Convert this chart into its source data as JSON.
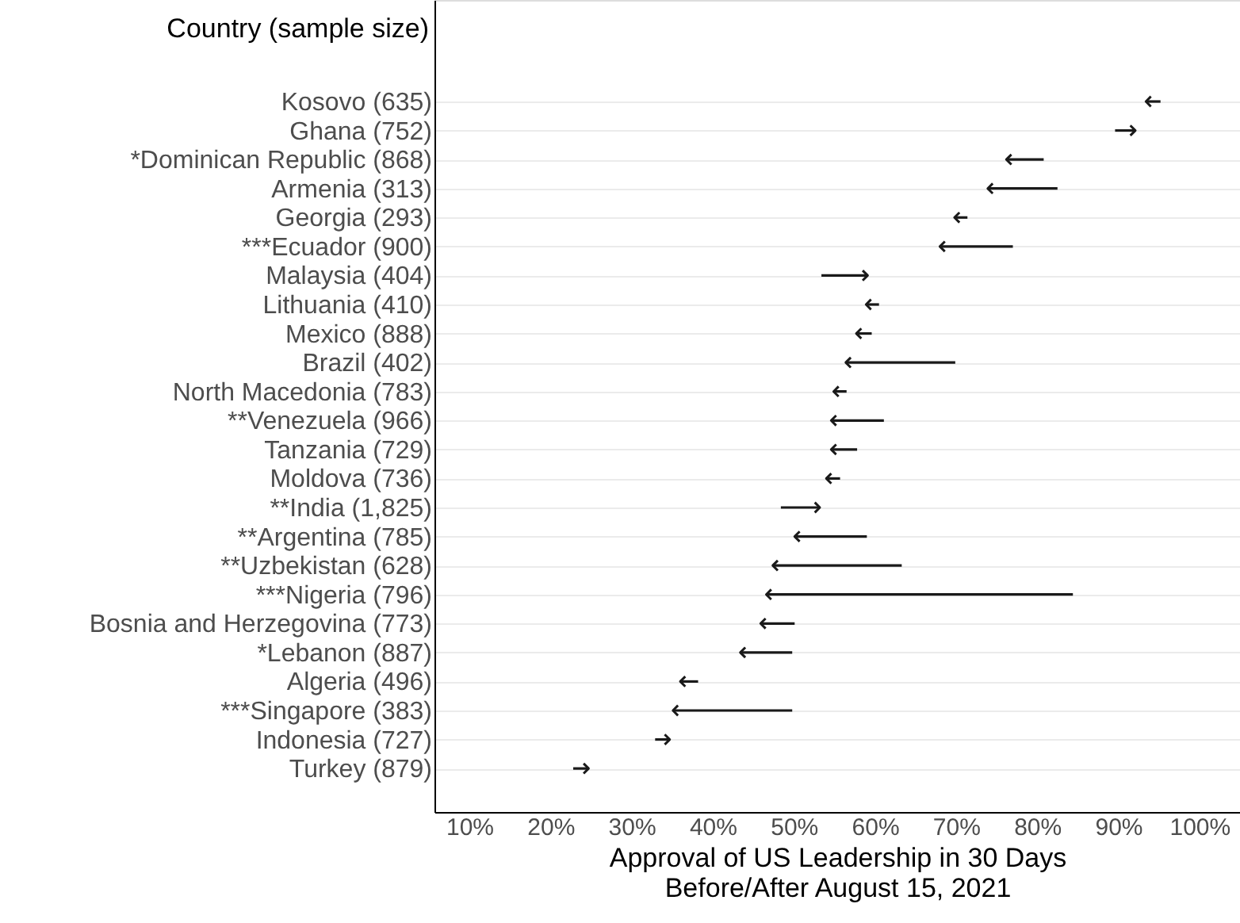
{
  "chart_data": {
    "type": "bar",
    "orientation": "horizontal",
    "ylabel": "Country (sample size)",
    "xlabel": "Approval of US Leadership in 30 Days\nBefore/After August 15, 2021",
    "categories": [
      "Kosovo (635)",
      "Ghana (752)",
      "*Dominican Republic (868)",
      "Armenia (313)",
      "Georgia (293)",
      "***Ecuador (900)",
      "Malaysia (404)",
      "Lithuania (410)",
      "Mexico (888)",
      "Brazil (402)",
      "North Macedonia (783)",
      "**Venezuela (966)",
      "Tanzania (729)",
      "Moldova (736)",
      "**India (1,825)",
      "**Argentina (785)",
      "**Uzbekistan (628)",
      "***Nigeria (796)",
      "Bosnia and Herzegovina (773)",
      "*Lebanon (887)",
      "Algeria (496)",
      "***Singapore (383)",
      "Indonesia (727)",
      "Turkey (879)"
    ],
    "base": [
      95.2,
      89.6,
      80.8,
      82.5,
      71.4,
      77.0,
      53.4,
      60.5,
      59.6,
      69.9,
      56.5,
      61.1,
      57.8,
      55.7,
      48.4,
      59.0,
      63.3,
      84.4,
      50.1,
      49.8,
      38.2,
      49.8,
      32.9,
      22.8
    ],
    "values": [
      -1.8,
      2.5,
      -4.6,
      -8.6,
      -1.6,
      -9.0,
      5.7,
      -1.6,
      -1.9,
      -13.5,
      -1.6,
      -6.5,
      -3.2,
      -1.7,
      4.8,
      -8.9,
      -15.9,
      -37.8,
      -4.2,
      -6.4,
      -2.2,
      -14.7,
      1.8,
      1.9
    ],
    "color": "#1a1a1a",
    "xlim": [
      5.7,
      105
    ],
    "xticks": [
      {
        "value": 10,
        "label": "10%"
      },
      {
        "value": 20,
        "label": "20%"
      },
      {
        "value": 30,
        "label": "30%"
      },
      {
        "value": 40,
        "label": "40%"
      },
      {
        "value": 50,
        "label": "50%"
      },
      {
        "value": 60,
        "label": "60%"
      },
      {
        "value": 70,
        "label": "70%"
      },
      {
        "value": 80,
        "label": "80%"
      },
      {
        "value": 90,
        "label": "90%"
      },
      {
        "value": 100,
        "label": "100%"
      }
    ],
    "grid": "y"
  }
}
